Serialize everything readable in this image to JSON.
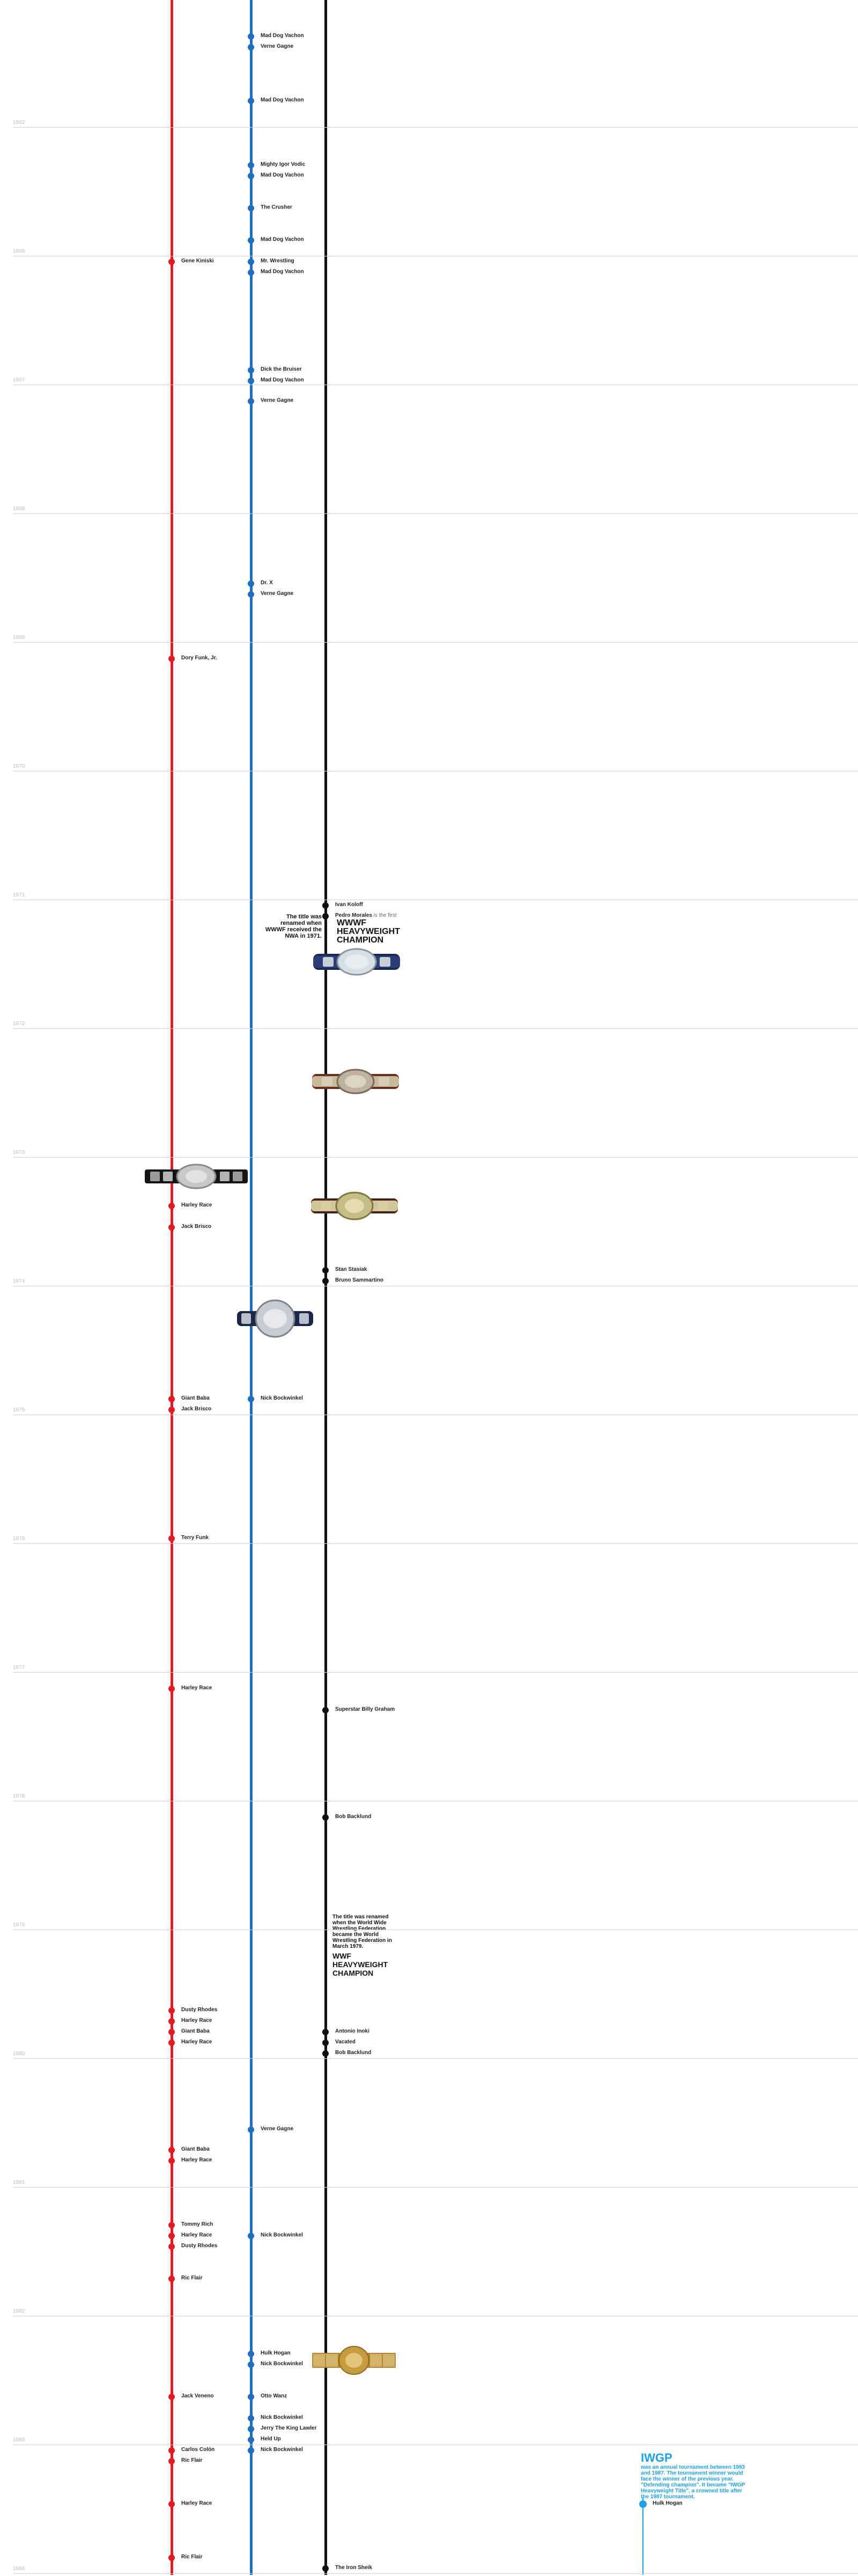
{
  "years": [
    {
      "label": "1962"
    },
    {
      "label": "1966"
    },
    {
      "label": "1967"
    },
    {
      "label": "1968"
    },
    {
      "label": "1969"
    },
    {
      "label": "1970"
    },
    {
      "label": "1971"
    },
    {
      "label": "1972"
    },
    {
      "label": "1973"
    },
    {
      "label": "1974"
    },
    {
      "label": "1975"
    },
    {
      "label": "1976"
    },
    {
      "label": "1977"
    },
    {
      "label": "1978"
    },
    {
      "label": "1979"
    },
    {
      "label": "1980"
    },
    {
      "label": "1981"
    },
    {
      "label": "1982"
    },
    {
      "label": "1983"
    },
    {
      "label": "1984"
    }
  ],
  "colors": {
    "red": "#e31b23",
    "blue": "#1d6fc4",
    "black": "#111111",
    "iwgp": "#1ba1e6",
    "grid": "#d9d9d9"
  },
  "events": [
    {
      "name": "Mad Dog Vachon",
      "line": "blue"
    },
    {
      "name": "Verne Gagne",
      "line": "blue"
    },
    {
      "name": "Mad Dog Vachon",
      "line": "blue"
    },
    {
      "name": "Mighty Igor Vodic",
      "line": "blue"
    },
    {
      "name": "Mad Dog Vachon",
      "line": "blue"
    },
    {
      "name": "The Crusher",
      "line": "blue"
    },
    {
      "name": "Mad Dog Vachon",
      "line": "blue"
    },
    {
      "name": "Gene Kiniski",
      "line": "red"
    },
    {
      "name": "Mr. Wrestling",
      "line": "blue"
    },
    {
      "name": "Mad Dog Vachon",
      "line": "blue"
    },
    {
      "name": "Dick the Bruiser",
      "line": "blue"
    },
    {
      "name": "Mad Dog Vachon",
      "line": "blue"
    },
    {
      "name": "Verne Gagne",
      "line": "blue"
    },
    {
      "name": "Dr. X",
      "line": "blue"
    },
    {
      "name": "Verne Gagne",
      "line": "blue"
    },
    {
      "name": "Dory Funk, Jr.",
      "line": "red"
    },
    {
      "name": "Ivan Koloff",
      "line": "black"
    },
    {
      "name": "Pedro Morales",
      "line": "black",
      "note": "is the first"
    },
    {
      "name": "Harley Race",
      "line": "red"
    },
    {
      "name": "Jack Brisco",
      "line": "red"
    },
    {
      "name": "Stan Stasiak",
      "line": "black"
    },
    {
      "name": "Bruno Sammartino",
      "line": "black"
    },
    {
      "name": "Giant Baba",
      "line": "red"
    },
    {
      "name": "Jack Brisco",
      "line": "red"
    },
    {
      "name": "Nick Bockwinkel",
      "line": "blue"
    },
    {
      "name": "Terry Funk",
      "line": "red"
    },
    {
      "name": "Harley Race",
      "line": "red"
    },
    {
      "name": "Superstar Billy Graham",
      "line": "black"
    },
    {
      "name": "Bob Backlund",
      "line": "black"
    },
    {
      "name": "Dusty Rhodes",
      "line": "red"
    },
    {
      "name": "Harley Race",
      "line": "red"
    },
    {
      "name": "Giant Baba",
      "line": "red"
    },
    {
      "name": "Harley Race",
      "line": "red"
    },
    {
      "name": "Antonio Inoki",
      "line": "black"
    },
    {
      "name": "Vacated",
      "line": "black"
    },
    {
      "name": "Bob Backlund",
      "line": "black"
    },
    {
      "name": "Verne Gagne",
      "line": "blue"
    },
    {
      "name": "Giant Baba",
      "line": "red"
    },
    {
      "name": "Harley Race",
      "line": "red"
    },
    {
      "name": "Tommy Rich",
      "line": "red"
    },
    {
      "name": "Harley Race",
      "line": "red"
    },
    {
      "name": "Dusty Rhodes",
      "line": "red"
    },
    {
      "name": "Nick Bockwinkel",
      "line": "blue"
    },
    {
      "name": "Ric Flair",
      "line": "red"
    },
    {
      "name": "Hulk Hogan",
      "line": "blue"
    },
    {
      "name": "Nick Bockwinkel",
      "line": "blue"
    },
    {
      "name": "Jack Veneno",
      "line": "red"
    },
    {
      "name": "Otto Wanz",
      "line": "blue"
    },
    {
      "name": "Nick Bockwinkel",
      "line": "blue"
    },
    {
      "name": "Jerry The King Lawler",
      "line": "blue"
    },
    {
      "name": "Held Up",
      "line": "blue"
    },
    {
      "name": "Carlos Colón",
      "line": "red"
    },
    {
      "name": "Nick Bockwinkel",
      "line": "blue"
    },
    {
      "name": "Ric Flair",
      "line": "red"
    },
    {
      "name": "Harley Race",
      "line": "red"
    },
    {
      "name": "Hulk Hogan",
      "line": "iwgp"
    },
    {
      "name": "Ric Flair",
      "line": "red"
    },
    {
      "name": "The Iron Sheik",
      "line": "black"
    }
  ],
  "notes": {
    "awa_rename": "The title was renamed when WWWF received the NWA in 1971.",
    "wwwf_title": "WWWF HEAVYWEIGHT CHAMPION",
    "wwf_rename": "The title was renamed when the World Wide Wrestling Federation became the World Wrestling Federation in March 1979.",
    "wwf_title": "WWF HEAVYWEIGHT CHAMPION"
  },
  "iwgp": {
    "title": "IWGP",
    "description": "was an annual tournament between 1983 and 1987. The tournament winner would face the winner of the previous year. \"Defending champion\". It became \"IWGP Heavyweight Title\", a crowned title after the 1987 tournament."
  },
  "belts": [
    {
      "name": "wwwf-belt-1"
    },
    {
      "name": "wwwf-belt-2"
    },
    {
      "name": "wwwf-belt-3"
    },
    {
      "name": "nwa-belt"
    },
    {
      "name": "awa-belt"
    },
    {
      "name": "wwf-gold-belt"
    }
  ]
}
